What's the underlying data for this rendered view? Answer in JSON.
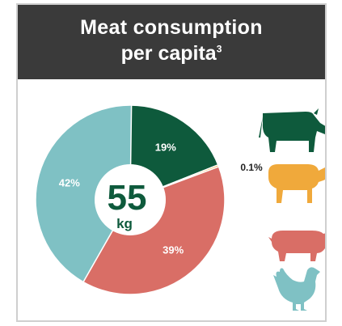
{
  "header": {
    "title_line1": "Meat consumption",
    "title_line2": "per capita",
    "footnote_mark": "3"
  },
  "center": {
    "value": "55",
    "unit": "kg"
  },
  "chart_data": {
    "type": "pie",
    "donut": true,
    "slices": [
      {
        "label": "19%",
        "value": 19,
        "animal": "cattle",
        "color": "#0e5a3c"
      },
      {
        "label": "0.1%",
        "value": 0.1,
        "animal": "sheep",
        "color": "#f0a93b"
      },
      {
        "label": "39%",
        "value": 39,
        "animal": "pig",
        "color": "#d96e66"
      },
      {
        "label": "42%",
        "value": 42,
        "animal": "chicken",
        "color": "#7fc1c4"
      }
    ],
    "total": {
      "value": "55",
      "unit": "kg"
    }
  },
  "icons": [
    {
      "name": "cow-icon",
      "color": "#0e5a3c"
    },
    {
      "name": "sheep-icon",
      "color": "#f0a93b"
    },
    {
      "name": "pig-icon",
      "color": "#d96e66"
    },
    {
      "name": "chicken-icon",
      "color": "#7fc1c4"
    }
  ]
}
